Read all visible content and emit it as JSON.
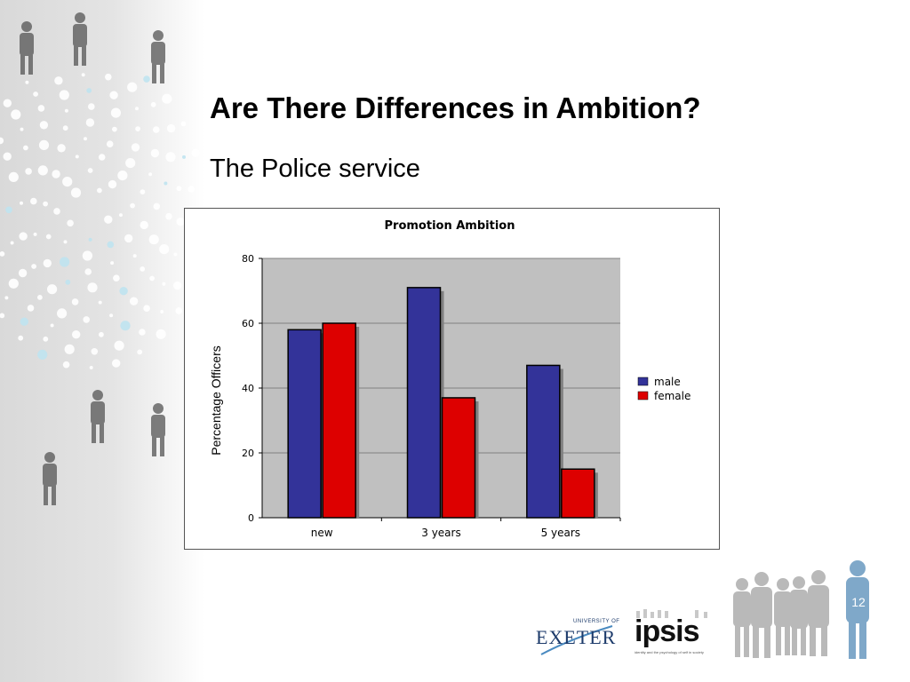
{
  "slide": {
    "title": "Are There Differences in Ambition?",
    "subtitle": "The Police service",
    "page_number": "12"
  },
  "logos": {
    "exeter_univ": "UNIVERSITY OF",
    "exeter_name": "EXETER",
    "ipsis_name": "ipsis",
    "ipsis_tagline": "identity and the psychology of self in society"
  },
  "colors": {
    "male": "#333399",
    "female": "#dd0000",
    "plot_bg": "#c0c0c0",
    "bar_shadow": "#808080"
  },
  "chart_data": {
    "type": "bar",
    "title": "Promotion Ambition",
    "xlabel": "",
    "ylabel": "Percentage Officers",
    "categories": [
      "new",
      "3 years",
      "5 years"
    ],
    "series": [
      {
        "name": "male",
        "values": [
          58,
          71,
          47
        ]
      },
      {
        "name": "female",
        "values": [
          60,
          37,
          15
        ]
      }
    ],
    "ylim": [
      0,
      80
    ],
    "yticks": [
      "0",
      "20",
      "40",
      "60",
      "80"
    ],
    "grid": true,
    "legend": "right"
  }
}
